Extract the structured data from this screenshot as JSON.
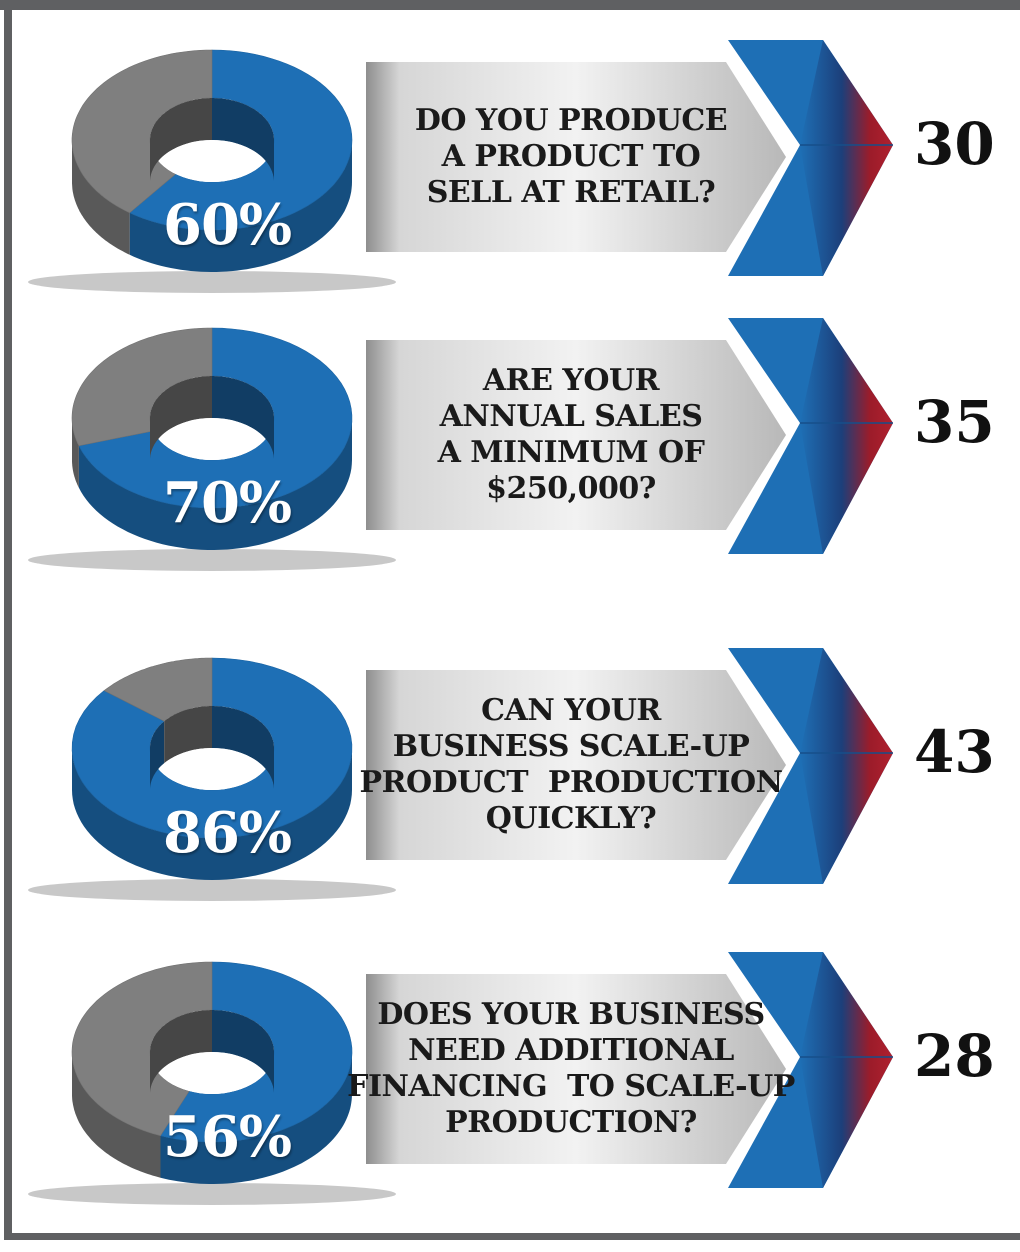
{
  "chart_data": [
    {
      "type": "pie",
      "value_label": "60%",
      "values": [
        60,
        40
      ],
      "colors": [
        "#1e6fb5",
        "#7f7f7f"
      ],
      "question_lines": [
        "DO YOU PRODUCE",
        "A PRODUCT TO",
        "SELL AT RETAIL?"
      ],
      "count": "30"
    },
    {
      "type": "pie",
      "value_label": "70%",
      "values": [
        70,
        30
      ],
      "colors": [
        "#1e6fb5",
        "#7f7f7f"
      ],
      "question_lines": [
        "ARE YOUR",
        "ANNUAL SALES",
        "A MINIMUM OF",
        "$250,000?"
      ],
      "count": "35"
    },
    {
      "type": "pie",
      "value_label": "86%",
      "values": [
        86,
        14
      ],
      "colors": [
        "#1e6fb5",
        "#7f7f7f"
      ],
      "question_lines": [
        "CAN YOUR",
        "BUSINESS SCALE-UP",
        "PRODUCT  PRODUCTION",
        "QUICKLY?"
      ],
      "count": "43"
    },
    {
      "type": "pie",
      "value_label": "56%",
      "values": [
        56,
        44
      ],
      "colors": [
        "#1e6fb5",
        "#7f7f7f"
      ],
      "question_lines": [
        "DOES YOUR BUSINESS",
        "NEED ADDITIONAL",
        "FINANCING  TO SCALE-UP",
        "PRODUCTION?"
      ],
      "count": "28"
    }
  ]
}
